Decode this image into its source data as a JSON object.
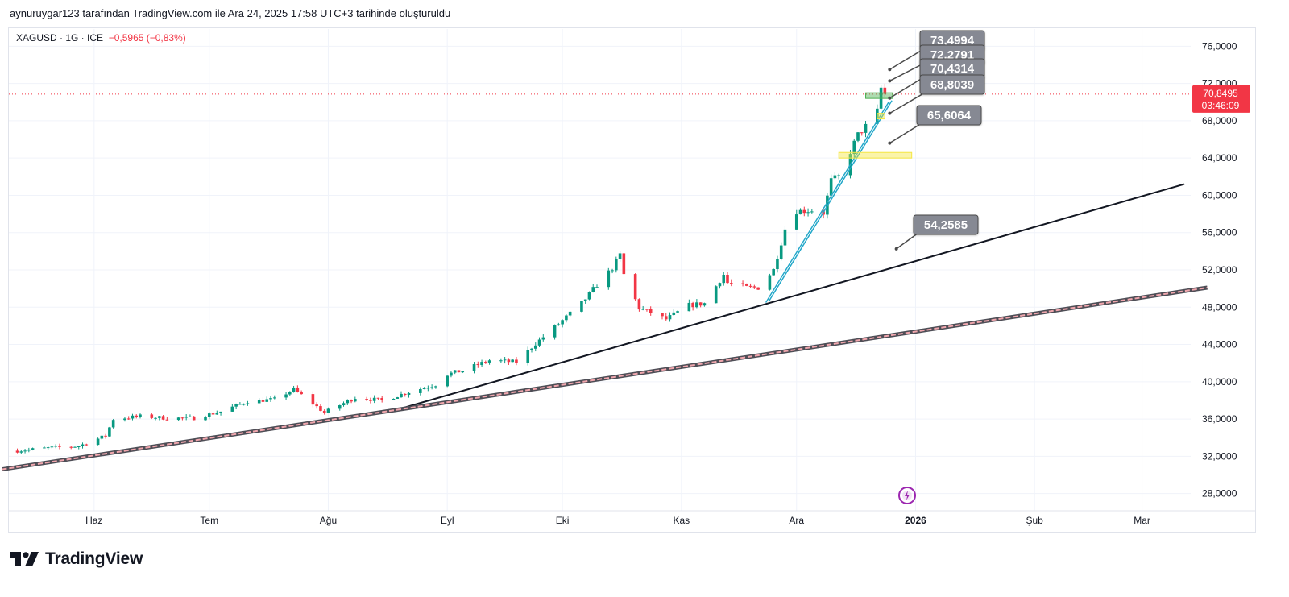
{
  "header": {
    "attribution": "aynuruygar123 tarafından TradingView.com ile Ara 24, 2025 17:58 UTC+3 tarihinde oluşturuldu"
  },
  "legend": {
    "symbol": "XAGUSD · 1G · ICE",
    "change": "−0,5965 (−0,83%)"
  },
  "footer": {
    "brand": "TradingView",
    "logo_icon": "tradingview-logo-icon"
  },
  "colors": {
    "up": "#089981",
    "down": "#f23645",
    "price_line": "#f23645",
    "trendline": "#131722",
    "channel": "#22a7c9",
    "zone_yellow": "#f5e642",
    "zone_green": "#4caf50",
    "label_bg": "#868993"
  },
  "chart_data": {
    "type": "candlestick",
    "symbol": "XAGUSD",
    "interval": "1G",
    "ylim": [
      26.5,
      77.5
    ],
    "y_ticks": [
      "76,0000",
      "72,0000",
      "68,0000",
      "64,0000",
      "60,0000",
      "56,0000",
      "52,0000",
      "48,0000",
      "44,0000",
      "40,0000",
      "36,0000",
      "32,0000",
      "28,0000"
    ],
    "y_tick_values": [
      76,
      72,
      68,
      64,
      60,
      56,
      52,
      48,
      44,
      40,
      36,
      32,
      28
    ],
    "x_ticks": [
      "Haz",
      "Tem",
      "Ağu",
      "Eyl",
      "Eki",
      "Kas",
      "Ara",
      "2026",
      "Şub",
      "Mar"
    ],
    "x_tick_dates": [
      "2025-06-01",
      "2025-07-01",
      "2025-08-01",
      "2025-09-01",
      "2025-10-01",
      "2025-11-01",
      "2025-12-01",
      "2026-01-01",
      "2026-02-01",
      "2026-03-01"
    ],
    "x_range": [
      "2025-05-10",
      "2026-03-12"
    ],
    "last_price": {
      "label": "70,8495",
      "countdown": "03:46:09",
      "value": 70.85
    },
    "close_path": [
      [
        "2025-05-12",
        32.6
      ],
      [
        "2025-05-20",
        32.9
      ],
      [
        "2025-05-28",
        33.1
      ],
      [
        "2025-06-04",
        34.2
      ],
      [
        "2025-06-06",
        36.0
      ],
      [
        "2025-06-13",
        36.3
      ],
      [
        "2025-06-20",
        36.1
      ],
      [
        "2025-06-27",
        36.1
      ],
      [
        "2025-07-04",
        36.8
      ],
      [
        "2025-07-11",
        37.9
      ],
      [
        "2025-07-18",
        38.1
      ],
      [
        "2025-07-23",
        39.2
      ],
      [
        "2025-07-31",
        36.7
      ],
      [
        "2025-08-08",
        38.3
      ],
      [
        "2025-08-15",
        38.0
      ],
      [
        "2025-08-22",
        38.9
      ],
      [
        "2025-08-29",
        39.7
      ],
      [
        "2025-09-01",
        40.8
      ],
      [
        "2025-09-05",
        41.2
      ],
      [
        "2025-09-12",
        42.3
      ],
      [
        "2025-09-19",
        42.1
      ],
      [
        "2025-09-24",
        44.1
      ],
      [
        "2025-09-30",
        46.2
      ],
      [
        "2025-10-06",
        48.4
      ],
      [
        "2025-10-10",
        50.4
      ],
      [
        "2025-10-14",
        52.2
      ],
      [
        "2025-10-16",
        53.6
      ],
      [
        "2025-10-17",
        51.5
      ],
      [
        "2025-10-21",
        47.9
      ],
      [
        "2025-10-28",
        46.7
      ],
      [
        "2025-11-03",
        48.2
      ],
      [
        "2025-11-07",
        48.4
      ],
      [
        "2025-11-12",
        51.5
      ],
      [
        "2025-11-13",
        50.6
      ],
      [
        "2025-11-18",
        50.1
      ],
      [
        "2025-11-21",
        50.1
      ],
      [
        "2025-11-25",
        52.0
      ],
      [
        "2025-11-28",
        56.4
      ],
      [
        "2025-12-01",
        58.3
      ],
      [
        "2025-12-05",
        58.4
      ],
      [
        "2025-12-08",
        58.1
      ],
      [
        "2025-12-10",
        61.6
      ],
      [
        "2025-12-12",
        62.0
      ],
      [
        "2025-12-17",
        66.5
      ],
      [
        "2025-12-19",
        67.4
      ],
      [
        "2025-12-22",
        69.0
      ],
      [
        "2025-12-23",
        71.5
      ],
      [
        "2025-12-24",
        70.85
      ]
    ],
    "price_labels": [
      {
        "text": "73,4994",
        "value": 73.4994,
        "anchor_date": "2025-12-24"
      },
      {
        "text": "72,2791",
        "value": 72.2791,
        "anchor_date": "2025-12-24"
      },
      {
        "text": "70,4314",
        "value": 70.4314,
        "anchor_date": "2025-12-24"
      },
      {
        "text": "68,8039",
        "value": 68.8039,
        "anchor_date": "2025-12-24"
      },
      {
        "text": "65,6064",
        "value": 65.6064,
        "anchor_date": "2025-12-24"
      },
      {
        "text": "54,2585",
        "value": 54.2585,
        "anchor_date": "2025-12-24"
      }
    ],
    "drawings": [
      {
        "kind": "trendline",
        "color": "black",
        "from": [
          "2025-08-18",
          36.9
        ],
        "to": [
          "2026-03-12",
          61.2
        ]
      },
      {
        "kind": "trendline",
        "color": "red-striped",
        "from": [
          "2025-05-08",
          30.6
        ],
        "to": [
          "2026-03-18",
          50.1
        ]
      },
      {
        "kind": "channel",
        "color": "blue",
        "from": [
          "2025-11-23",
          48.5
        ],
        "to": [
          "2025-12-25",
          70.0
        ]
      },
      {
        "kind": "zone",
        "color": "yellow",
        "from": [
          "2025-12-12",
          64.6
        ],
        "to": [
          "2025-12-31",
          64.0
        ]
      },
      {
        "kind": "zone",
        "color": "yellow",
        "from": [
          "2025-12-22",
          68.8
        ],
        "to": [
          "2025-12-24",
          68.2
        ]
      },
      {
        "kind": "zone",
        "color": "green",
        "from": [
          "2025-12-19",
          71.0
        ],
        "to": [
          "2025-12-26",
          70.4
        ]
      }
    ]
  }
}
